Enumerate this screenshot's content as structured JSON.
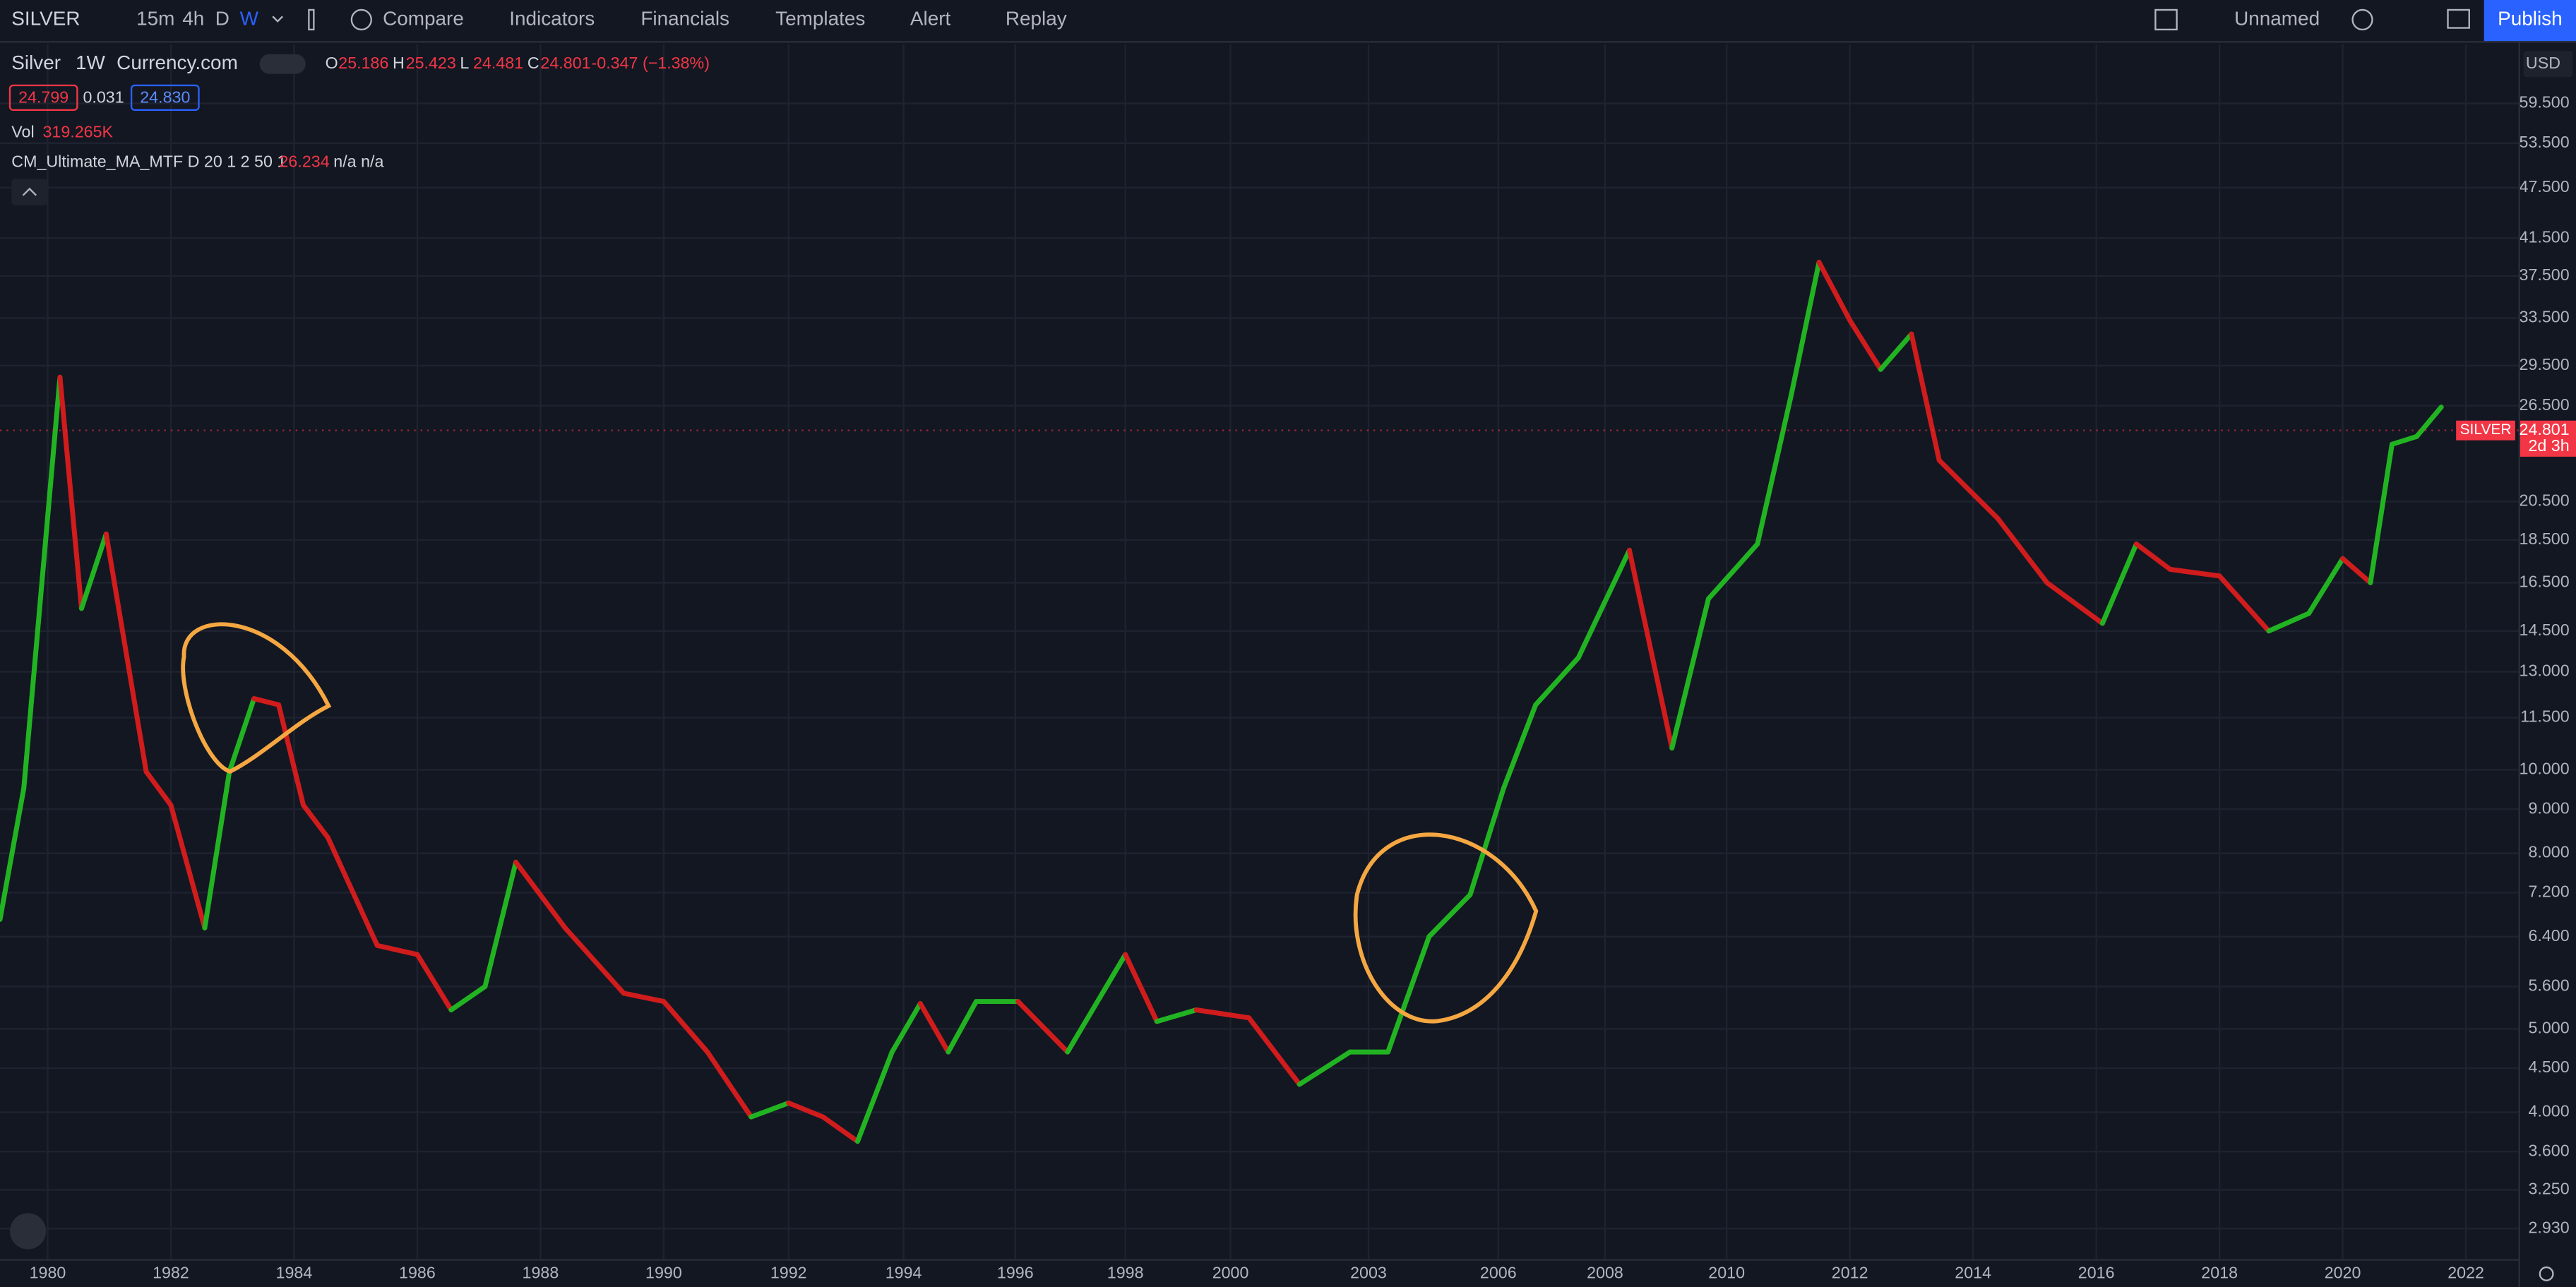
{
  "toolbar": {
    "symbol": "SILVER",
    "intervals": [
      "15m",
      "4h",
      "D",
      "W"
    ],
    "buttons": [
      "Compare",
      "Indicators",
      "Financials",
      "Templates",
      "Alert",
      "Replay"
    ],
    "layout": "Unnamed",
    "publish": "Publish"
  },
  "legend": {
    "name": "Silver",
    "interval": "1W",
    "source": "Currency.com",
    "ohlc": [
      {
        "key": "O",
        "value": "25.186"
      },
      {
        "key": "H",
        "value": "25.423"
      },
      {
        "key": "L",
        "value": "24.481"
      },
      {
        "key": "C",
        "value": "24.801"
      }
    ],
    "change": "-0.347 (−1.38%)",
    "bid": "24.799",
    "spread": "0.031",
    "ask": "24.830",
    "vol_label": "Vol",
    "vol_value": "319.265K",
    "indicator": "CM_Ultimate_MA_MTF D 20 1 2 50 1",
    "indicator_value": "26.234",
    "indicator_rest": "n/a n/a"
  },
  "currency": "USD",
  "chart_data": {
    "type": "line",
    "log_scale": true,
    "grid": true,
    "up_color": "#22b322",
    "down_color": "#d01c1c",
    "x": [
      1979.2,
      1979.6,
      1980.2,
      1980.55,
      1980.95,
      1981.6,
      1982.0,
      1982.55,
      1982.95,
      1983.35,
      1983.75,
      1984.15,
      1984.55,
      1985.35,
      1986.0,
      1986.55,
      1987.1,
      1987.6,
      1988.4,
      1989.35,
      1990.0,
      1990.7,
      1991.4,
      1992.0,
      1992.6,
      1993.2,
      1993.8,
      1994.3,
      1994.8,
      1995.3,
      1996.05,
      1996.95,
      1998.0,
      1998.6,
      1999.35,
      2000.4,
      2001.5,
      2002.6,
      2003.45,
      2004.4,
      2005.35,
      2006.1,
      2006.7,
      2007.5,
      2008.4,
      2009.1,
      2009.7,
      2010.5,
      2011.05,
      2011.5,
      2012.0,
      2012.5,
      2013.0,
      2013.45,
      2014.4,
      2015.2,
      2016.1,
      2016.65,
      2017.2,
      2018.0,
      2018.8,
      2019.45,
      2020.0,
      2020.45,
      2020.8,
      2021.2,
      2021.6
    ],
    "series": [
      {
        "name": "CM_Ultimate_MA_MTF",
        "values": [
          6.7,
          9.52,
          28.6,
          15.4,
          18.8,
          9.95,
          9.1,
          6.55,
          9.95,
          12.1,
          11.9,
          9.1,
          8.34,
          6.25,
          6.1,
          5.26,
          5.6,
          7.81,
          6.55,
          5.5,
          5.38,
          4.7,
          3.95,
          4.1,
          3.95,
          3.7,
          4.7,
          5.35,
          4.7,
          5.38,
          5.38,
          4.7,
          6.1,
          5.1,
          5.26,
          5.15,
          4.31,
          4.7,
          4.7,
          6.4,
          7.16,
          9.52,
          11.9,
          13.5,
          18.0,
          10.6,
          15.8,
          18.3,
          27.3,
          38.9,
          33.3,
          29.2,
          32.1,
          22.9,
          19.6,
          16.5,
          14.8,
          18.3,
          17.1,
          16.8,
          14.5,
          15.2,
          17.6,
          16.5,
          23.9,
          24.4,
          26.4
        ]
      }
    ],
    "xlim": [
      1979.2,
      2022.9
    ],
    "xticks": [
      1980,
      1982,
      1984,
      1986,
      1988,
      1990,
      1992,
      1994,
      1996,
      1998,
      2000,
      2003,
      2006,
      2008,
      2010,
      2012,
      2014,
      2016,
      2018,
      2020,
      2022
    ],
    "ylim": [
      2.7,
      69.7
    ],
    "yticks": [
      {
        "value": 59.5,
        "label": "59.500"
      },
      {
        "value": 53.5,
        "label": "53.500"
      },
      {
        "value": 47.5,
        "label": "47.500"
      },
      {
        "value": 41.5,
        "label": "41.500"
      },
      {
        "value": 37.5,
        "label": "37.500"
      },
      {
        "value": 33.5,
        "label": "33.500"
      },
      {
        "value": 29.5,
        "label": "29.500"
      },
      {
        "value": 26.5,
        "label": "26.500"
      },
      {
        "value": 20.5,
        "label": "20.500"
      },
      {
        "value": 18.5,
        "label": "18.500"
      },
      {
        "value": 16.5,
        "label": "16.500"
      },
      {
        "value": 14.5,
        "label": "14.500"
      },
      {
        "value": 13,
        "label": "13.000"
      },
      {
        "value": 11.5,
        "label": "11.500"
      },
      {
        "value": 10,
        "label": "10.000"
      },
      {
        "value": 9,
        "label": "9.000"
      },
      {
        "value": 8,
        "label": "8.000"
      },
      {
        "value": 7.2,
        "label": "7.200"
      },
      {
        "value": 6.4,
        "label": "6.400"
      },
      {
        "value": 5.6,
        "label": "5.600"
      },
      {
        "value": 5,
        "label": "5.000"
      },
      {
        "value": 4.5,
        "label": "4.500"
      },
      {
        "value": 4,
        "label": "4.000"
      },
      {
        "value": 3.6,
        "label": "3.600"
      },
      {
        "value": 3.25,
        "label": "3.250"
      },
      {
        "value": 2.93,
        "label": "2.930"
      }
    ],
    "price_tag": {
      "name": "SILVER",
      "value": 24.801,
      "label": "24.801",
      "countdown": "2d 3h",
      "color": "#f23645"
    }
  }
}
